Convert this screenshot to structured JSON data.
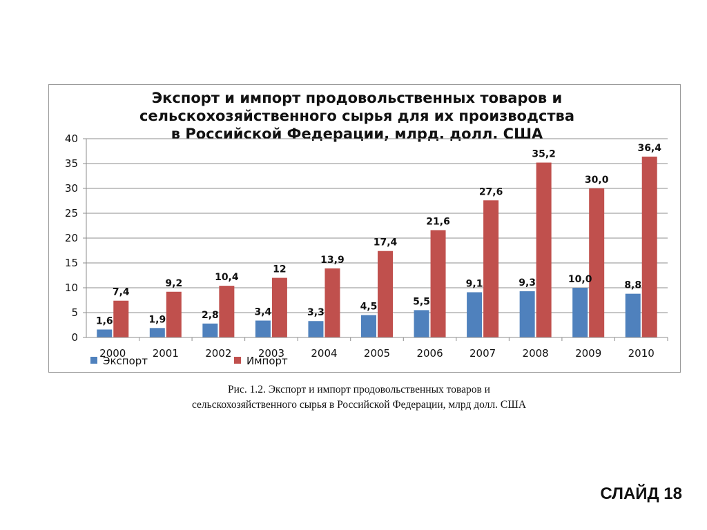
{
  "chart_data": {
    "type": "bar",
    "title_lines": [
      "Экспорт и импорт продовольственных товаров и",
      "сельскохозяйственного сырья для их производства",
      "в Российской Федерации, млрд. долл. США"
    ],
    "categories": [
      "2000",
      "2001",
      "2002",
      "2003",
      "2004",
      "2005",
      "2006",
      "2007",
      "2008",
      "2009",
      "2010"
    ],
    "series": [
      {
        "name": "Экспорт",
        "color": "#4F81BD",
        "values": [
          1.6,
          1.9,
          2.8,
          3.4,
          3.3,
          4.5,
          5.5,
          9.1,
          9.3,
          10.0,
          8.8
        ],
        "labels": [
          "1,6",
          "1,9",
          "2,8",
          "3,4",
          "3,3",
          "4,5",
          "5,5",
          "9,1",
          "9,3",
          "10,0",
          "8,8"
        ]
      },
      {
        "name": "Импорт",
        "color": "#C0504D",
        "values": [
          7.4,
          9.2,
          10.4,
          12,
          13.9,
          17.4,
          21.6,
          27.6,
          35.2,
          30.0,
          36.4
        ],
        "labels": [
          "7,4",
          "9,2",
          "10,4",
          "12",
          "13,9",
          "17,4",
          "21,6",
          "27,6",
          "35,2",
          "30,0",
          "36,4"
        ]
      }
    ],
    "ylim": [
      0,
      40
    ],
    "yticks": [
      0,
      5,
      10,
      15,
      20,
      25,
      30,
      35,
      40
    ],
    "grid": true,
    "legend_position": "bottom-left",
    "xlabel": "",
    "ylabel": ""
  },
  "caption": {
    "line1": "Рис. 1.2. Экспорт и импорт продовольственных товаров и",
    "line2": "сельскохозяйственного сырья в Российской Федерации, млрд долл. США"
  },
  "slide_label": "СЛАЙД 18"
}
